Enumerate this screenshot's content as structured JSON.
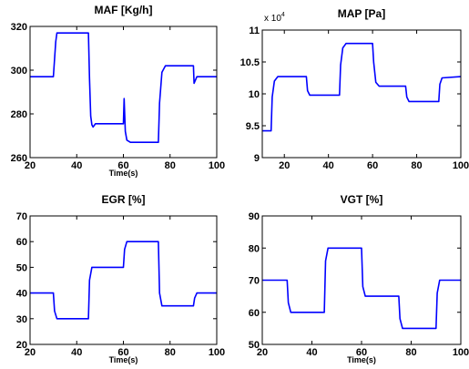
{
  "chart_data": [
    {
      "type": "line",
      "title": "MAF [Kg/h]",
      "xlabel": "Time(s)",
      "ylabel": "",
      "xlim": [
        20,
        100
      ],
      "ylim": [
        260,
        320
      ],
      "xticks": [
        "20",
        "40",
        "60",
        "80",
        "100"
      ],
      "yticks": [
        "260",
        "280",
        "300",
        "320"
      ],
      "series": [
        {
          "color": "#0000ff",
          "x": [
            20,
            30,
            30.5,
            31,
            31.5,
            45,
            45.5,
            46,
            46.5,
            47,
            48,
            60,
            60.3,
            60.8,
            61.5,
            63,
            75,
            75.5,
            76.5,
            78,
            90,
            90.3,
            91.5,
            100
          ],
          "y": [
            297,
            297,
            305,
            313,
            317,
            317,
            296,
            279,
            275,
            274,
            275.5,
            275.5,
            287,
            272,
            268,
            267,
            267,
            285,
            299,
            302,
            302,
            294,
            297,
            297
          ]
        }
      ]
    },
    {
      "type": "line",
      "title": "MAP [Pa]",
      "xlabel": "",
      "ylabel": "",
      "multiplier": "x 10",
      "multiplier_exponent": "4",
      "xlim": [
        10,
        100
      ],
      "ylim": [
        9,
        11
      ],
      "xticks": [
        "20",
        "40",
        "60",
        "80",
        "100"
      ],
      "yticks": [
        "9",
        "9.5",
        "10",
        "10.5",
        "11"
      ],
      "series": [
        {
          "color": "#0000ff",
          "x": [
            10,
            14,
            14.5,
            15.5,
            17,
            30,
            30.5,
            31.5,
            45,
            45.5,
            46.5,
            48,
            60,
            60.5,
            61.5,
            63,
            75,
            75.5,
            76.5,
            78,
            90,
            90.5,
            91.5,
            100
          ],
          "y": [
            9.42,
            9.42,
            9.95,
            10.2,
            10.27,
            10.27,
            10.05,
            9.98,
            9.98,
            10.45,
            10.72,
            10.79,
            10.79,
            10.5,
            10.18,
            10.12,
            10.12,
            9.95,
            9.88,
            9.88,
            9.88,
            10.15,
            10.25,
            10.27
          ]
        }
      ]
    },
    {
      "type": "line",
      "title": "EGR [%]",
      "xlabel": "Time(s)",
      "ylabel": "",
      "xlim": [
        20,
        100
      ],
      "ylim": [
        20,
        70
      ],
      "xticks": [
        "20",
        "40",
        "60",
        "80",
        "100"
      ],
      "yticks": [
        "20",
        "30",
        "40",
        "50",
        "60",
        "70"
      ],
      "series": [
        {
          "color": "#0000ff",
          "x": [
            20,
            30,
            30.5,
            31.5,
            45,
            45.5,
            46.5,
            60,
            60.5,
            61.5,
            75,
            75.5,
            76.5,
            90,
            90.5,
            91.5,
            100
          ],
          "y": [
            40,
            40,
            33,
            30,
            30,
            45,
            50,
            50,
            57,
            60,
            60,
            40,
            35,
            35,
            38,
            40,
            40
          ]
        }
      ]
    },
    {
      "type": "line",
      "title": "VGT [%]",
      "xlabel": "Time(s)",
      "ylabel": "",
      "xlim": [
        20,
        100
      ],
      "ylim": [
        50,
        90
      ],
      "xticks": [
        "20",
        "40",
        "60",
        "80",
        "100"
      ],
      "yticks": [
        "50",
        "60",
        "70",
        "80",
        "90"
      ],
      "series": [
        {
          "color": "#0000ff",
          "x": [
            20,
            30,
            30.5,
            31.5,
            45,
            45.5,
            46.5,
            60,
            60.5,
            61.5,
            75,
            75.5,
            76.5,
            90,
            90.5,
            91.5,
            100
          ],
          "y": [
            70,
            70,
            63,
            60,
            60,
            76,
            80,
            80,
            68,
            65,
            65,
            58,
            55,
            55,
            66,
            70,
            70
          ]
        }
      ]
    }
  ]
}
